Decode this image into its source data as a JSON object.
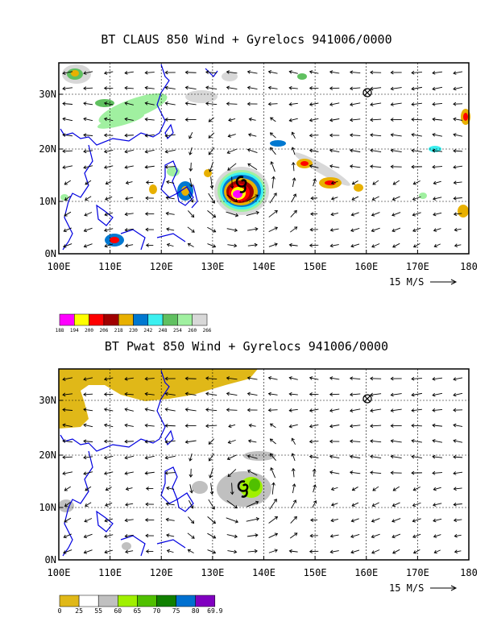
{
  "top_panel": {
    "title": "BT CLAUS 850 Wind + Gyrelocs 941006/0000",
    "x_ticks": [
      "100E",
      "110E",
      "120E",
      "130E",
      "140E",
      "150E",
      "160E",
      "170E",
      "180"
    ],
    "y_ticks": [
      "0N",
      "10N",
      "20N",
      "30N"
    ],
    "vector_scale_label": "15 M/S",
    "colorbar_labels": [
      "188",
      "194",
      "200",
      "206",
      "218",
      "230",
      "242",
      "248",
      "254",
      "260",
      "266"
    ],
    "colorbar_colors": [
      "#ff00ff",
      "#ffff00",
      "#ff0000",
      "#a00000",
      "#e8b000",
      "#0078d0",
      "#3cf0f0",
      "#60c060",
      "#a0f0a0",
      "#d8d8d8"
    ]
  },
  "bottom_panel": {
    "title": "BT Pwat 850 Wind + Gyrelocs 941006/0000",
    "x_ticks": [
      "100E",
      "110E",
      "120E",
      "130E",
      "140E",
      "150E",
      "160E",
      "170E",
      "180"
    ],
    "y_ticks": [
      "0N",
      "10N",
      "20N",
      "30N"
    ],
    "vector_scale_label": "15 M/S",
    "colorbar_labels": [
      "0",
      "25",
      "55",
      "60",
      "65",
      "70",
      "75",
      "80",
      "69.9"
    ],
    "colorbar_colors": [
      "#e0b818",
      "#ffffff",
      "#c0c0c0",
      "#a0f000",
      "#50c000",
      "#108000",
      "#0070d0",
      "#8000c0"
    ]
  }
}
